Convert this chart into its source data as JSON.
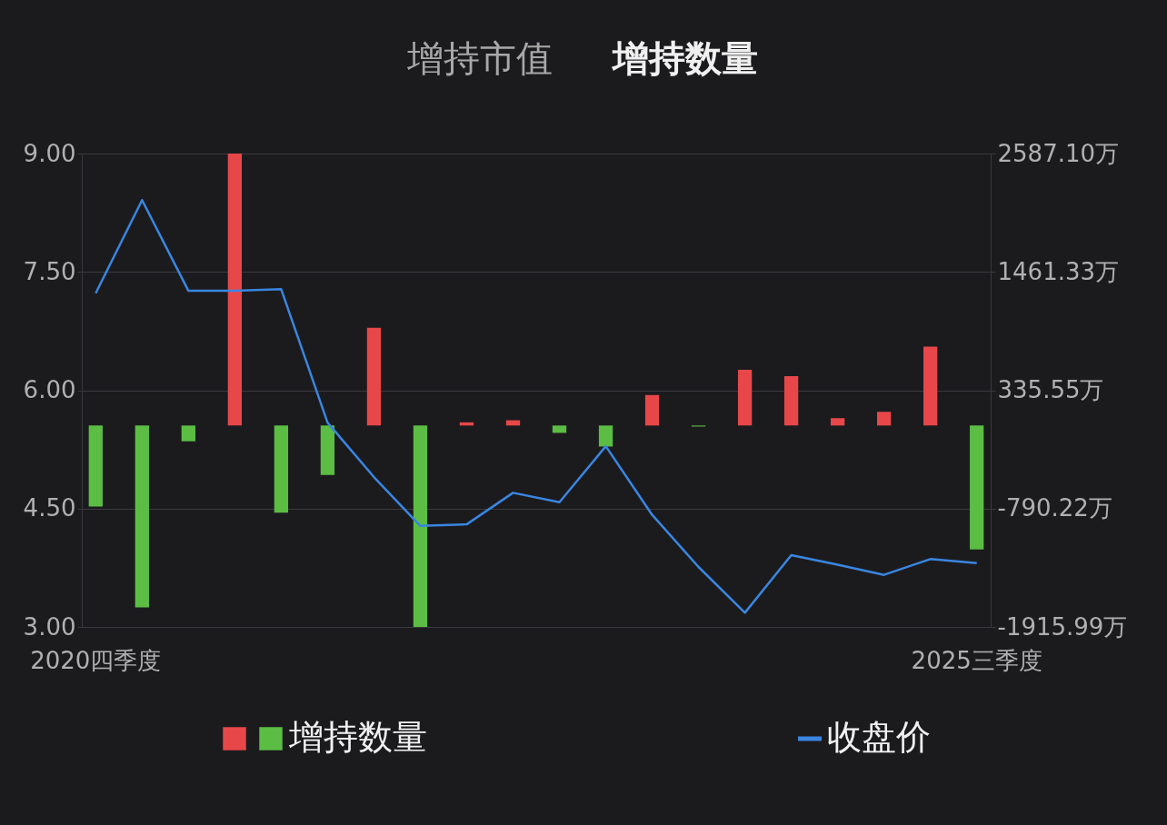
{
  "chart_data": {
    "type": "bar",
    "annotations": [
      "增持市值",
      "增持数量"
    ],
    "categories": [
      "2020四季度",
      null,
      null,
      null,
      null,
      null,
      null,
      null,
      null,
      null,
      null,
      null,
      null,
      null,
      null,
      null,
      null,
      null,
      null,
      "2025三季度"
    ],
    "series": [
      {
        "name": "增持数量",
        "axis": "y2",
        "colors": [
          "#5bbd43",
          "#5bbd43",
          "#5bbd43",
          "#e84749",
          "#5bbd43",
          "#5bbd43",
          "#e84749",
          "#5bbd43",
          "#e84749",
          "#e84749",
          "#5bbd43",
          "#5bbd43",
          "#e84749",
          "#5bbd43",
          "#e84749",
          "#e84749",
          "#e84749",
          "#e84749",
          "#e84749",
          "#5bbd43"
        ],
        "values": [
          -770,
          -1730,
          -150,
          2587.1,
          -830,
          -470,
          930,
          -1915.99,
          30,
          50,
          -70,
          -200,
          290,
          -10,
          530,
          470,
          70,
          130,
          750,
          -1180
        ]
      },
      {
        "name": "收盘价",
        "type": "line",
        "color": "#3a86e0",
        "values": [
          7.23,
          8.41,
          7.26,
          7.26,
          7.28,
          5.59,
          4.9,
          4.28,
          4.3,
          4.7,
          4.58,
          5.29,
          4.42,
          3.76,
          3.18,
          3.91,
          3.79,
          3.66,
          3.86,
          3.81
        ]
      }
    ],
    "ylim": [
      3,
      9
    ],
    "yticks": [
      {
        "value": 3,
        "label": "3.00"
      },
      {
        "value": 4.5,
        "label": "4.50"
      },
      {
        "value": 6,
        "label": "6.00"
      },
      {
        "value": 7.5,
        "label": "7.50"
      },
      {
        "value": 9,
        "label": "9.00"
      }
    ],
    "y2lim": [
      -1915.99,
      2587.1
    ],
    "y2ticks": [
      {
        "value": -1915.99,
        "label": "-1915.99万"
      },
      {
        "value": -790.22,
        "label": "-790.22万"
      },
      {
        "value": 335.55,
        "label": "335.55万"
      },
      {
        "value": 1461.33,
        "label": "1461.33万"
      },
      {
        "value": 2587.1,
        "label": "2587.10万"
      }
    ],
    "grid": "y",
    "legend": "bottom"
  }
}
